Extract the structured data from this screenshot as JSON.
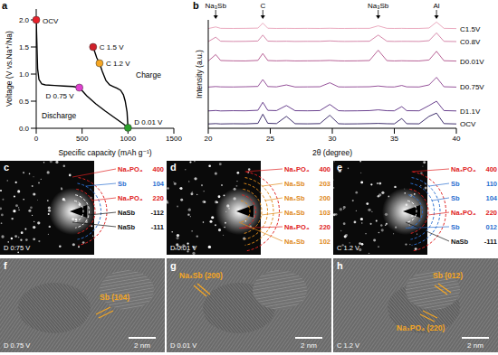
{
  "chart_data": [
    {
      "type": "line",
      "panel_label": "a",
      "x_label": "Specific capacity (mAh g⁻¹)",
      "y_label": "Voltage (V vs.Na⁺/Na)",
      "xlim": [
        0,
        1500
      ],
      "xticks": [
        0,
        500,
        1000,
        1500
      ],
      "ylim": [
        0,
        2.2
      ],
      "yticks": [
        {
          "value": 0,
          "label": "0.0"
        },
        {
          "value": 0.5,
          "label": "0.5"
        },
        {
          "value": 1,
          "label": "1.0"
        },
        {
          "value": 1.5,
          "label": "1.5"
        },
        {
          "value": 2,
          "label": "2.0"
        }
      ],
      "series": [
        {
          "name": "Discharge",
          "color": "#000000",
          "x": [
            0,
            5,
            15,
            30,
            60,
            100,
            200,
            300,
            400,
            470,
            550,
            650,
            750,
            850,
            950,
            1000
          ],
          "values": [
            2.0,
            1.7,
            1.1,
            0.9,
            0.82,
            0.8,
            0.79,
            0.78,
            0.77,
            0.75,
            0.6,
            0.45,
            0.32,
            0.2,
            0.08,
            0.01
          ]
        },
        {
          "name": "Charge",
          "color": "#000000",
          "x": [
            1000,
            990,
            970,
            950,
            920,
            880,
            840,
            800,
            760,
            720,
            690,
            660,
            630,
            620
          ],
          "values": [
            0.01,
            0.3,
            0.5,
            0.62,
            0.7,
            0.74,
            0.77,
            0.8,
            0.88,
            1.05,
            1.2,
            1.3,
            1.45,
            1.5
          ]
        }
      ],
      "annotations": [
        {
          "text": "OCV",
          "x": 0,
          "y": 2.0,
          "color": "#e8202a"
        },
        {
          "text": "D 0.75 V",
          "x": 470,
          "y": 0.75,
          "color": "#e040d0"
        },
        {
          "text": "D 0.01 V",
          "x": 1000,
          "y": 0.01,
          "color": "#2ca02c"
        },
        {
          "text": "C 1.2 V",
          "x": 690,
          "y": 1.2,
          "color": "#f5a623"
        },
        {
          "text": "C 1.5 V",
          "x": 620,
          "y": 1.5,
          "color": "#d0202a"
        }
      ]
    },
    {
      "type": "line",
      "panel_label": "b",
      "x_label": "2θ (degree)",
      "y_label": "Intensity (a.u.)",
      "xlim": [
        20,
        40
      ],
      "xticks": [
        20,
        25,
        30,
        35,
        40
      ],
      "ylim": [
        0,
        100
      ],
      "tick_labels": "x",
      "x": [
        20,
        20.6,
        21,
        22,
        23,
        24,
        24.4,
        24.8,
        25.5,
        26.3,
        27,
        28,
        29,
        29.8,
        30.5,
        31,
        32,
        33,
        33.7,
        34.4,
        35,
        35.6,
        36,
        37,
        37.8,
        38.4,
        39,
        40
      ],
      "series": [
        {
          "name": "OCV",
          "color": "#2b1a5e",
          "values": [
            4,
            4.3,
            4,
            4.2,
            4.1,
            4.5,
            13,
            4.6,
            4.3,
            11,
            4.2,
            4.1,
            4.3,
            12,
            4.2,
            4,
            4.1,
            4.3,
            4.5,
            4.2,
            4.1,
            9,
            4.2,
            4.1,
            11,
            14,
            4.3,
            4
          ]
        },
        {
          "name": "D1.1V",
          "color": "#5a2d82",
          "values": [
            16,
            16.4,
            16,
            16.2,
            16.1,
            16.6,
            24,
            16.5,
            16.3,
            21,
            16.2,
            16.1,
            16.3,
            22,
            16.2,
            16,
            16.1,
            16.3,
            17,
            16.2,
            16.1,
            20,
            16.2,
            16.1,
            21,
            25,
            16.3,
            16
          ]
        },
        {
          "name": "D0.75V",
          "color": "#8a3f8f",
          "values": [
            38,
            38.5,
            38.2,
            38.1,
            38.3,
            38.6,
            45,
            38.5,
            38.2,
            40,
            38.1,
            38.2,
            38.3,
            42,
            38.2,
            38.1,
            38.2,
            38.3,
            39,
            38.2,
            38.1,
            39.5,
            38.2,
            38.1,
            40,
            47,
            38.3,
            38
          ]
        },
        {
          "name": "D0.01V",
          "color": "#b0508a",
          "values": [
            62,
            68,
            62.5,
            62.2,
            62.1,
            62.6,
            69,
            62.5,
            62.2,
            62.4,
            62.1,
            62.2,
            62.3,
            62.6,
            62.2,
            62.1,
            62.2,
            62.5,
            72,
            62.4,
            62.1,
            62.3,
            62.2,
            62.1,
            63,
            71,
            62.3,
            62
          ]
        },
        {
          "name": "C0.8V",
          "color": "#d07aa0",
          "values": [
            80,
            84,
            80.3,
            80.1,
            80.2,
            80.5,
            86,
            80.4,
            80.2,
            80.3,
            80.1,
            80.2,
            80.2,
            80.6,
            80.2,
            80.1,
            80.2,
            80.3,
            86,
            80.3,
            80.1,
            80.2,
            80.2,
            80.1,
            80.8,
            88,
            80.2,
            80
          ]
        },
        {
          "name": "C1.5V",
          "color": "#e8a0b8",
          "values": [
            92,
            93.5,
            92.2,
            92.1,
            92.2,
            92.4,
            97,
            92.3,
            92.1,
            92.2,
            92.1,
            92.2,
            92.1,
            92.3,
            92.1,
            92.1,
            92.2,
            92.2,
            94.5,
            92.2,
            92.1,
            92.2,
            92.1,
            92.1,
            92.5,
            98,
            92.2,
            92
          ]
        }
      ],
      "peak_labels": [
        {
          "text": "Na₃Sb",
          "x": 20.6
        },
        {
          "text": "C",
          "x": 24.4
        },
        {
          "text": "Na₃Sb",
          "x": 33.7
        },
        {
          "text": "Al",
          "x": 38.4
        }
      ]
    }
  ],
  "saed_panels": [
    {
      "panel_label": "c",
      "state": "D 0.75 V",
      "rings": [
        {
          "phase": "Na₃PO₄",
          "hkl": "400",
          "color": "#e02020"
        },
        {
          "phase": "Sb",
          "hkl": "104",
          "color": "#2a6fd0"
        },
        {
          "phase": "Na₃PO₄",
          "hkl": "220",
          "color": "#e02020"
        },
        {
          "phase": "NaSb",
          "hkl": "-112",
          "color": "#111111"
        },
        {
          "phase": "NaSb",
          "hkl": "-111",
          "color": "#111111"
        }
      ]
    },
    {
      "panel_label": "d",
      "state": "D 0.01 V",
      "rings": [
        {
          "phase": "Na₃PO₄",
          "hkl": "400",
          "color": "#e02020"
        },
        {
          "phase": "Na₃Sb",
          "hkl": "203",
          "color": "#e08a1a"
        },
        {
          "phase": "Na₃Sb",
          "hkl": "200",
          "color": "#e08a1a"
        },
        {
          "phase": "Na₃Sb",
          "hkl": "103",
          "color": "#e08a1a"
        },
        {
          "phase": "Na₃PO₄",
          "hkl": "220",
          "color": "#e02020"
        },
        {
          "phase": "Na₃Sb",
          "hkl": "102",
          "color": "#e08a1a"
        }
      ]
    },
    {
      "panel_label": "e",
      "state": "C 1.2 V",
      "rings": [
        {
          "phase": "Na₃PO₄",
          "hkl": "400",
          "color": "#e02020"
        },
        {
          "phase": "Sb",
          "hkl": "110",
          "color": "#2a6fd0"
        },
        {
          "phase": "Sb",
          "hkl": "104",
          "color": "#2a6fd0"
        },
        {
          "phase": "Na₃PO₄",
          "hkl": "220",
          "color": "#e02020"
        },
        {
          "phase": "Sb",
          "hkl": "012",
          "color": "#2a6fd0"
        },
        {
          "phase": "NaSb",
          "hkl": "-111",
          "color": "#111111"
        }
      ]
    }
  ],
  "hrtem_panels": [
    {
      "panel_label": "f",
      "state": "D 0.75 V",
      "scale_bar": "2 nm",
      "lattice_labels": [
        {
          "text": "Sb (104)",
          "color": "#f5a623"
        }
      ]
    },
    {
      "panel_label": "g",
      "state": "D 0.01 V",
      "scale_bar": "2 nm",
      "lattice_labels": [
        {
          "text": "Na₃Sb (200)",
          "color": "#f5a623"
        }
      ]
    },
    {
      "panel_label": "h",
      "state": "C 1.2 V",
      "scale_bar": "2 nm",
      "lattice_labels": [
        {
          "text": "Sb (012)",
          "color": "#f5a623"
        },
        {
          "text": "Na₃PO₄ (220)",
          "color": "#f5a623"
        }
      ]
    }
  ]
}
